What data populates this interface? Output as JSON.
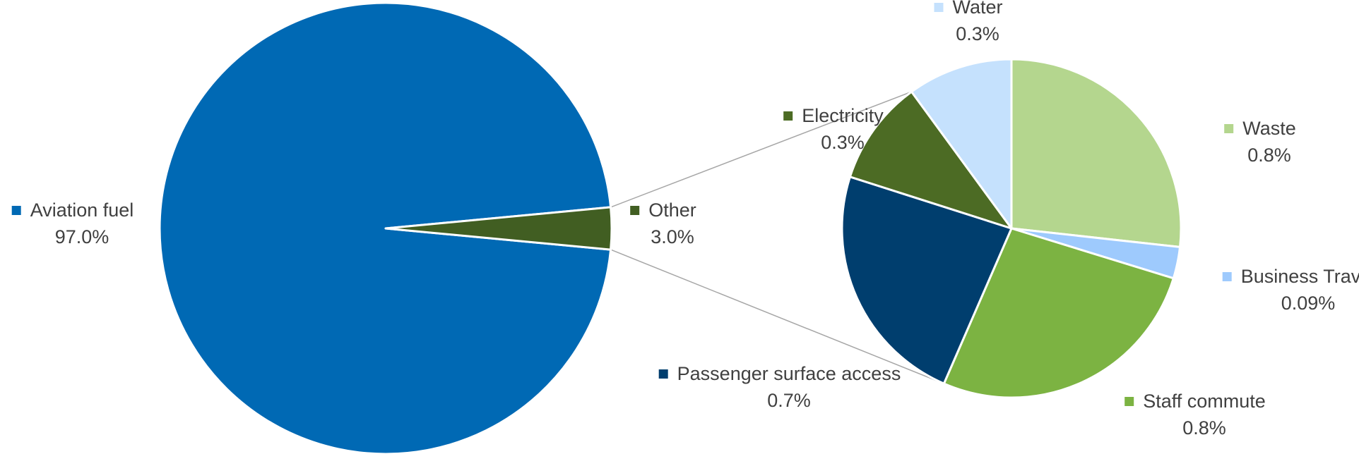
{
  "chart_data": {
    "type": "pie",
    "subtype": "pie-of-pie",
    "main": {
      "slices": [
        {
          "label": "Aviation fuel",
          "value": 97.0,
          "display": "97.0%",
          "color": "#0069B4"
        },
        {
          "label": "Other",
          "value": 3.0,
          "display": "3.0%",
          "color": "#415E22"
        }
      ]
    },
    "secondary": {
      "parent": "Other",
      "slices": [
        {
          "label": "Waste",
          "value": 0.8,
          "display": "0.8%",
          "color": "#B4D68E"
        },
        {
          "label": "Business Travel",
          "value": 0.09,
          "display": "0.09%",
          "color": "#9ECAFD"
        },
        {
          "label": "Staff commute",
          "value": 0.8,
          "display": "0.8%",
          "color": "#7CB342"
        },
        {
          "label": "Passenger surface access",
          "value": 0.7,
          "display": "0.7%",
          "color": "#003E6E"
        },
        {
          "label": "Electricity",
          "value": 0.3,
          "display": "0.3%",
          "color": "#4C6B24"
        },
        {
          "label": "Water",
          "value": 0.3,
          "display": "0.3%",
          "color": "#C5E1FD"
        }
      ]
    },
    "connector_color": "#A6A6A6",
    "label_color": "#404040"
  }
}
